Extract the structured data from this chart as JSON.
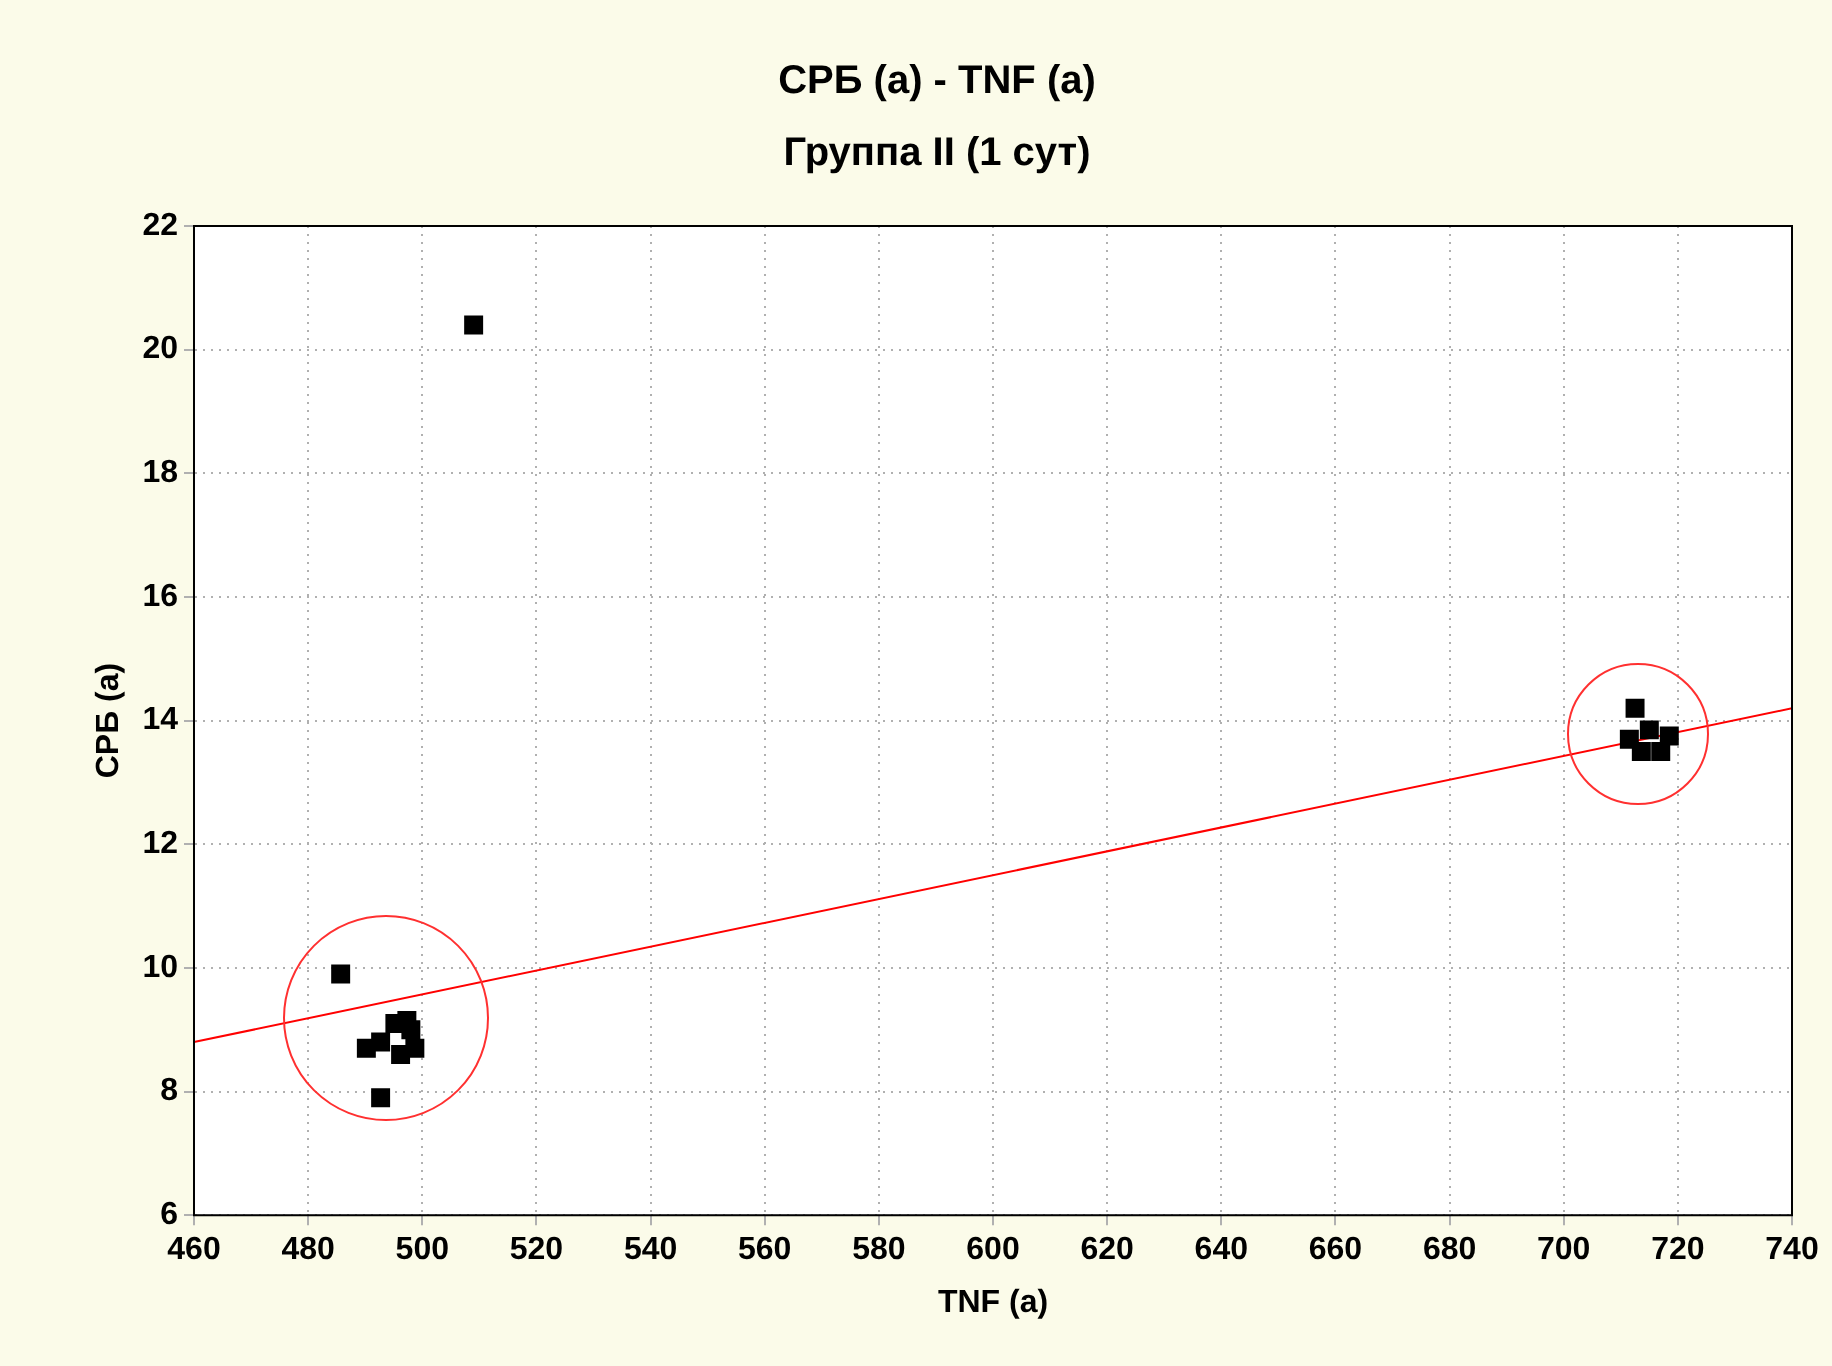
{
  "chart_data": {
    "type": "scatter",
    "title": "СРБ (a) - TNF (a)",
    "subtitle": "Группа II (1 сут)",
    "xlabel": "TNF (a)",
    "ylabel": "СРБ (a)",
    "xlim": [
      460,
      740
    ],
    "xticks": [
      460,
      480,
      500,
      520,
      540,
      560,
      580,
      600,
      620,
      640,
      660,
      680,
      700,
      720,
      740
    ],
    "ylim": [
      6,
      22
    ],
    "yticks": [
      6,
      8,
      10,
      12,
      14,
      16,
      18,
      20,
      22
    ],
    "grid": true,
    "legend": false,
    "marker": "square",
    "series": [
      {
        "color": "#000000",
        "x": [
          485.7,
          492.7,
          509,
          490.2,
          492.7,
          495.2,
          497.3,
          496.2,
          498.7,
          498,
          712.5,
          711.5,
          713.6,
          718.5,
          715,
          717
        ],
        "values": [
          9.9,
          7.9,
          20.4,
          8.7,
          8.8,
          9.1,
          9.15,
          8.6,
          8.7,
          9.0,
          14.2,
          13.7,
          13.5,
          13.75,
          13.85,
          13.5
        ]
      },
      {
        "type": "line",
        "color": "#ff0000",
        "x": [
          460,
          740
        ],
        "values": [
          8.8,
          14.2
        ],
        "marker": "none"
      }
    ]
  }
}
